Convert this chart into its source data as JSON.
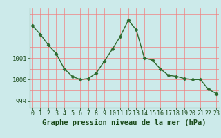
{
  "hours": [
    0,
    1,
    2,
    3,
    4,
    5,
    6,
    7,
    8,
    9,
    10,
    11,
    12,
    13,
    14,
    15,
    16,
    17,
    18,
    19,
    20,
    21,
    22,
    23
  ],
  "pressure": [
    1002.5,
    1002.1,
    1001.6,
    1001.2,
    1000.5,
    1000.15,
    1000.0,
    1000.05,
    1000.3,
    1000.85,
    1001.4,
    1002.0,
    1002.75,
    1002.3,
    1001.0,
    1000.9,
    1000.5,
    1000.2,
    1000.15,
    1000.05,
    1000.0,
    1000.0,
    999.55,
    999.35
  ],
  "line_color": "#2d6a2d",
  "marker": "D",
  "marker_size": 2.5,
  "background_color": "#cceaea",
  "grid_color": "#f08080",
  "xlabel": "Graphe pression niveau de la mer (hPa)",
  "xlabel_color": "#1a4a1a",
  "tick_color": "#1a4a1a",
  "yticks": [
    999,
    1000,
    1001
  ],
  "ylim": [
    998.7,
    1003.3
  ],
  "xlim": [
    -0.3,
    23.3
  ],
  "xtick_labels": [
    "0",
    "1",
    "2",
    "3",
    "4",
    "5",
    "6",
    "7",
    "8",
    "9",
    "10",
    "11",
    "12",
    "13",
    "14",
    "15",
    "16",
    "17",
    "18",
    "19",
    "20",
    "21",
    "22",
    "23"
  ],
  "tick_fontsize": 6.5,
  "xlabel_fontsize": 7.5,
  "spine_color": "#2d6a2d",
  "hgrid_values": [
    999.0,
    999.5,
    1000.0,
    1000.5,
    1001.0,
    1001.5,
    1002.0,
    1002.5,
    1003.0
  ]
}
